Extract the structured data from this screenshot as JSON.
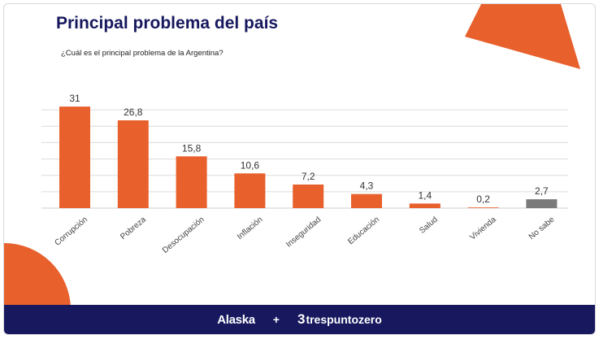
{
  "header": {
    "title": "Principal problema del país",
    "question": "¿Cuál es el principal problema de la Argentina?"
  },
  "footer": {
    "brand_left": "Alaska",
    "separator": "+",
    "brand_right": "trespuntozero"
  },
  "colors": {
    "navy": "#17185e",
    "orange": "#e8602c",
    "gray": "#7a7a7a"
  },
  "chart_data": {
    "type": "bar",
    "title": "",
    "xlabel": "",
    "ylabel": "",
    "ylim": [
      0,
      35
    ],
    "grid": true,
    "categories": [
      "Corrupción",
      "Pobreza",
      "Desocupación",
      "Inflación",
      "Inseguridad",
      "Educación",
      "Salud",
      "Vivienda",
      "No sabe"
    ],
    "values": [
      31,
      26.8,
      15.8,
      10.6,
      7.2,
      4.3,
      1.4,
      0.2,
      2.7
    ],
    "value_labels": [
      "31",
      "26,8",
      "15,8",
      "10,6",
      "7,2",
      "4,3",
      "1,4",
      "0,2",
      "2,7"
    ],
    "bar_colors": [
      "#e8602c",
      "#e8602c",
      "#e8602c",
      "#e8602c",
      "#e8602c",
      "#e8602c",
      "#e8602c",
      "#e8602c",
      "#7a7a7a"
    ]
  }
}
